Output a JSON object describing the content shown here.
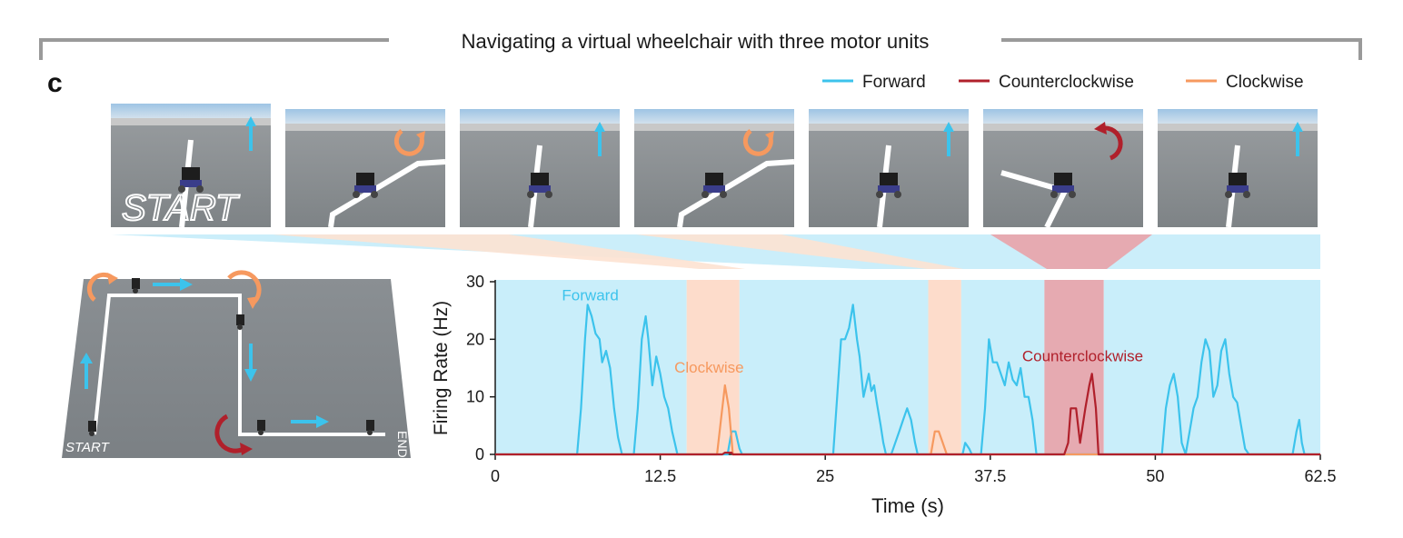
{
  "header": {
    "title": "Navigating a virtual wheelchair with three motor units"
  },
  "panel_label": "c",
  "legend": [
    {
      "label": "Forward",
      "color": "#3cc3ec"
    },
    {
      "label": "Counterclockwise",
      "color": "#b0202b"
    },
    {
      "label": "Clockwise",
      "color": "#f6995f"
    }
  ],
  "frames": [
    {
      "command": "forward",
      "icon": "up-arrow-icon",
      "text": "START"
    },
    {
      "command": "clockwise",
      "icon": "clockwise-arrow-icon"
    },
    {
      "command": "forward",
      "icon": "up-arrow-icon"
    },
    {
      "command": "clockwise",
      "icon": "clockwise-arrow-icon"
    },
    {
      "command": "forward",
      "icon": "up-arrow-icon"
    },
    {
      "command": "counterclockwise",
      "icon": "counterclockwise-arrow-icon"
    },
    {
      "command": "forward",
      "icon": "up-arrow-icon"
    }
  ],
  "map": {
    "start_label": "START",
    "end_label": "END"
  },
  "chart_data": {
    "type": "line",
    "xlabel": "Time (s)",
    "ylabel": "Firing Rate (Hz)",
    "xlim": [
      0,
      62.5
    ],
    "ylim": [
      0,
      30
    ],
    "xticks": [
      "0",
      "12.5",
      "25",
      "37.5",
      "50",
      "62.5"
    ],
    "yticks": [
      "0",
      "10",
      "20",
      "30"
    ],
    "regions": [
      {
        "command": "Forward",
        "start": 0,
        "end": 14.5,
        "color": "#c9eefa"
      },
      {
        "command": "Clockwise",
        "start": 14.5,
        "end": 18.5,
        "color": "#fddccb"
      },
      {
        "command": "Forward",
        "start": 18.5,
        "end": 32.8,
        "color": "#c9eefa"
      },
      {
        "command": "Clockwise",
        "start": 32.8,
        "end": 35.3,
        "color": "#fddccb"
      },
      {
        "command": "Forward",
        "start": 35.3,
        "end": 41.6,
        "color": "#c9eefa"
      },
      {
        "command": "Counterclockwise",
        "start": 41.6,
        "end": 46.1,
        "color": "#e6aab1"
      },
      {
        "command": "Forward",
        "start": 46.1,
        "end": 62.5,
        "color": "#c9eefa"
      }
    ],
    "annotations": [
      {
        "text": "Forward",
        "x": 7.2,
        "y": 26.8,
        "color": "#3cc3ec"
      },
      {
        "text": "Clockwise",
        "x": 16.2,
        "y": 14.2,
        "color": "#f6995f"
      },
      {
        "text": "Counterclockwise",
        "x": 44.5,
        "y": 16.2,
        "color": "#b0202b"
      }
    ],
    "series": [
      {
        "name": "Forward",
        "color": "#3cc3ec",
        "points": [
          [
            0,
            0
          ],
          [
            6.2,
            0
          ],
          [
            6.5,
            8
          ],
          [
            6.8,
            20
          ],
          [
            7.0,
            26
          ],
          [
            7.3,
            24
          ],
          [
            7.6,
            21
          ],
          [
            7.9,
            20
          ],
          [
            8.1,
            16
          ],
          [
            8.4,
            18
          ],
          [
            8.7,
            15
          ],
          [
            9.0,
            8
          ],
          [
            9.3,
            3
          ],
          [
            9.6,
            0
          ],
          [
            10.5,
            0
          ],
          [
            10.8,
            8
          ],
          [
            11.1,
            20
          ],
          [
            11.4,
            24
          ],
          [
            11.6,
            20
          ],
          [
            11.9,
            12
          ],
          [
            12.2,
            17
          ],
          [
            12.5,
            14
          ],
          [
            12.8,
            10
          ],
          [
            13.1,
            8
          ],
          [
            13.4,
            4
          ],
          [
            13.6,
            2
          ],
          [
            13.8,
            0
          ],
          [
            17.6,
            0
          ],
          [
            17.9,
            4
          ],
          [
            18.2,
            4
          ],
          [
            18.5,
            1
          ],
          [
            18.7,
            0
          ],
          [
            25.6,
            0
          ],
          [
            25.9,
            10
          ],
          [
            26.2,
            20
          ],
          [
            26.5,
            20
          ],
          [
            26.8,
            22
          ],
          [
            27.1,
            26
          ],
          [
            27.4,
            20
          ],
          [
            27.6,
            17
          ],
          [
            27.9,
            10
          ],
          [
            28.1,
            12
          ],
          [
            28.3,
            14
          ],
          [
            28.5,
            11
          ],
          [
            28.7,
            12
          ],
          [
            28.9,
            9
          ],
          [
            29.2,
            5
          ],
          [
            29.4,
            2
          ],
          [
            29.6,
            0
          ],
          [
            30.0,
            0
          ],
          [
            30.3,
            2
          ],
          [
            30.6,
            4
          ],
          [
            30.9,
            6
          ],
          [
            31.2,
            8
          ],
          [
            31.5,
            6
          ],
          [
            31.8,
            2
          ],
          [
            32.0,
            0
          ],
          [
            35.4,
            0
          ],
          [
            35.6,
            2
          ],
          [
            35.9,
            1
          ],
          [
            36.1,
            0
          ],
          [
            36.8,
            0
          ],
          [
            37.1,
            8
          ],
          [
            37.4,
            20
          ],
          [
            37.7,
            16
          ],
          [
            38.0,
            16
          ],
          [
            38.3,
            14
          ],
          [
            38.6,
            12
          ],
          [
            38.9,
            16
          ],
          [
            39.2,
            13
          ],
          [
            39.5,
            12
          ],
          [
            39.8,
            15
          ],
          [
            40.1,
            10
          ],
          [
            40.4,
            10
          ],
          [
            40.7,
            6
          ],
          [
            41.0,
            0
          ],
          [
            50.5,
            0
          ],
          [
            50.8,
            8
          ],
          [
            51.1,
            12
          ],
          [
            51.4,
            14
          ],
          [
            51.7,
            10
          ],
          [
            52.0,
            2
          ],
          [
            52.3,
            0
          ],
          [
            52.6,
            4
          ],
          [
            52.9,
            8
          ],
          [
            53.2,
            10
          ],
          [
            53.5,
            16
          ],
          [
            53.8,
            20
          ],
          [
            54.1,
            18
          ],
          [
            54.4,
            10
          ],
          [
            54.7,
            12
          ],
          [
            55.0,
            18
          ],
          [
            55.3,
            20
          ],
          [
            55.6,
            14
          ],
          [
            55.9,
            10
          ],
          [
            56.2,
            9
          ],
          [
            56.5,
            5
          ],
          [
            56.8,
            1
          ],
          [
            57.1,
            0
          ],
          [
            60.4,
            0
          ],
          [
            60.7,
            4
          ],
          [
            60.9,
            6
          ],
          [
            61.1,
            2
          ],
          [
            61.3,
            0
          ],
          [
            62.5,
            0
          ]
        ]
      },
      {
        "name": "Clockwise",
        "color": "#f6995f",
        "points": [
          [
            0,
            0
          ],
          [
            16.8,
            0
          ],
          [
            17.1,
            6
          ],
          [
            17.4,
            12
          ],
          [
            17.7,
            8
          ],
          [
            18.0,
            0
          ],
          [
            33.0,
            0
          ],
          [
            33.3,
            4
          ],
          [
            33.6,
            4
          ],
          [
            33.9,
            2
          ],
          [
            34.2,
            0
          ],
          [
            62.5,
            0
          ]
        ]
      },
      {
        "name": "Counterclockwise",
        "color": "#b0202b",
        "points": [
          [
            0,
            0
          ],
          [
            17.2,
            0
          ],
          [
            17.4,
            0.3
          ],
          [
            17.9,
            0.3
          ],
          [
            18.0,
            0
          ],
          [
            43.1,
            0
          ],
          [
            43.4,
            2
          ],
          [
            43.6,
            8
          ],
          [
            44.0,
            8
          ],
          [
            44.3,
            2
          ],
          [
            44.7,
            8
          ],
          [
            45.0,
            12
          ],
          [
            45.2,
            14
          ],
          [
            45.5,
            8
          ],
          [
            45.7,
            0
          ],
          [
            62.5,
            0
          ]
        ]
      }
    ]
  }
}
